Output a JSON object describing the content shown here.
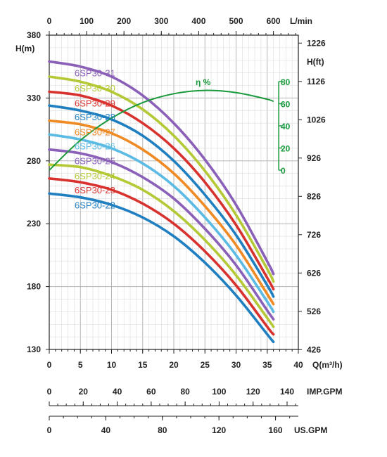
{
  "chart_data": {
    "type": "line",
    "title": "",
    "xlabel": "Q(m³/h)",
    "ylabel": "H(m)",
    "xlim": [
      0,
      40
    ],
    "ylim": [
      130,
      380
    ],
    "x_ticks": [
      "0",
      "5",
      "10",
      "15",
      "20",
      "25",
      "30",
      "35",
      "40"
    ],
    "y_ticks": [
      "130",
      "180",
      "230",
      "280",
      "330",
      "380"
    ],
    "grid": true,
    "top_axis": {
      "label": "L/min",
      "ticks": [
        "0",
        "100",
        "200",
        "300",
        "400",
        "500",
        "600"
      ],
      "values": [
        0,
        100,
        200,
        300,
        400,
        500,
        600
      ]
    },
    "right_axis": {
      "label": "H(ft)",
      "ticks": [
        "426",
        "526",
        "626",
        "726",
        "826",
        "926",
        "1026",
        "1126",
        "1226"
      ],
      "values": [
        426,
        526,
        626,
        726,
        826,
        926,
        1026,
        1126,
        1226
      ]
    },
    "imp_gpm_axis": {
      "label": "IMP.GPM",
      "ticks": [
        "0",
        "20",
        "40",
        "60",
        "80",
        "100",
        "120",
        "140"
      ],
      "values": [
        0,
        20,
        40,
        60,
        80,
        100,
        120,
        140
      ]
    },
    "us_gpm_axis": {
      "label": "US.GPM",
      "ticks": [
        "0",
        "40",
        "80",
        "120",
        "160"
      ],
      "values": [
        0,
        40,
        80,
        120,
        160
      ]
    },
    "efficiency_axis": {
      "label": "η %",
      "ticks": [
        "0",
        "20",
        "40",
        "60",
        "80"
      ],
      "values": [
        0,
        20,
        40,
        60,
        80
      ]
    },
    "efficiency_curve": {
      "color": "#1a9a3c",
      "x": [
        0,
        5,
        10,
        15,
        20,
        25,
        30,
        35,
        36
      ],
      "y": [
        0,
        27,
        47,
        61,
        69,
        72,
        70,
        64,
        62
      ]
    },
    "x": [
      0,
      5,
      10,
      15,
      20,
      25,
      30,
      35,
      36
    ],
    "series": [
      {
        "name": "6SP30-31",
        "color": "#8a60b8",
        "values": [
          359,
          355,
          347,
          332,
          310,
          281,
          245,
          200,
          190
        ]
      },
      {
        "name": "6SP30-30",
        "color": "#b5c836",
        "values": [
          347,
          343,
          335,
          321,
          300,
          272,
          237,
          194,
          184
        ]
      },
      {
        "name": "6SP30-29",
        "color": "#d8322e",
        "values": [
          335,
          332,
          324,
          310,
          290,
          263,
          229,
          187,
          178
        ]
      },
      {
        "name": "6SP30-28",
        "color": "#1f7fc1",
        "values": [
          324,
          320,
          313,
          300,
          280,
          253,
          221,
          181,
          172
        ]
      },
      {
        "name": "6SP30-27",
        "color": "#f08a24",
        "values": [
          312,
          309,
          302,
          289,
          270,
          244,
          213,
          174,
          166
        ]
      },
      {
        "name": "6SP30-26",
        "color": "#5bbbe4",
        "values": [
          301,
          297,
          290,
          278,
          260,
          235,
          205,
          168,
          160
        ]
      },
      {
        "name": "6SP30-25",
        "color": "#8a60b8",
        "values": [
          289,
          286,
          279,
          267,
          250,
          226,
          197,
          161,
          154
        ]
      },
      {
        "name": "6SP30-24",
        "color": "#b5c836",
        "values": [
          277,
          275,
          268,
          257,
          240,
          217,
          189,
          155,
          148
        ]
      },
      {
        "name": "6SP30-23",
        "color": "#d8322e",
        "values": [
          266,
          263,
          257,
          246,
          230,
          208,
          181,
          148,
          142
        ]
      },
      {
        "name": "6SP30-22",
        "color": "#1f7fc1",
        "values": [
          254,
          251,
          245,
          235,
          220,
          199,
          173,
          142,
          136
        ]
      }
    ],
    "legend_placement": "inline-left"
  }
}
